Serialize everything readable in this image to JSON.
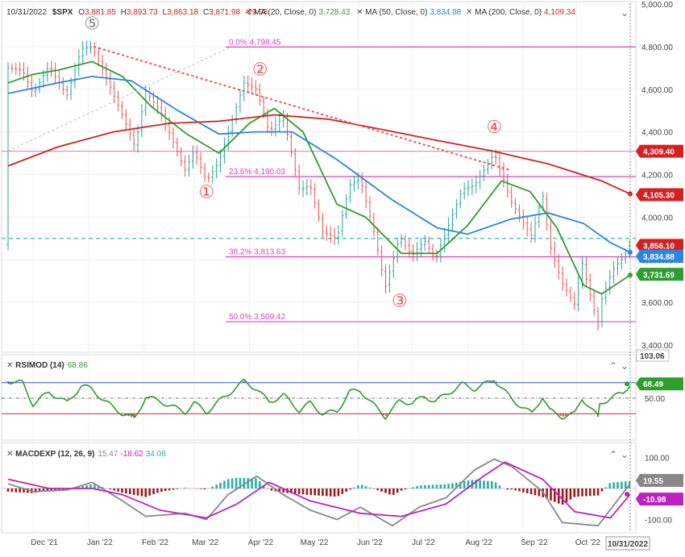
{
  "header": {
    "date": "10/31/2022",
    "symbol": "$SPX",
    "ohlc": [
      {
        "k": "O",
        "v": "3,881.85"
      },
      {
        "k": "H",
        "v": "3,893.73"
      },
      {
        "k": "L",
        "v": "3,863.18"
      },
      {
        "k": "C",
        "v": "3,871.98"
      }
    ],
    "change": "-29.08",
    "mas": [
      {
        "label": "MA (20, Close, 0)",
        "value": "3,728.43",
        "color": "#2e9e2e"
      },
      {
        "label": "MA (50, Close, 0)",
        "value": "3,834.88",
        "color": "#2a86e0"
      },
      {
        "label": "MA (200, Close, 0)",
        "value": "4,109.34",
        "color": "#d62020"
      }
    ]
  },
  "colors": {
    "up": "#26a69a",
    "down": "#ef5350",
    "fib": "#e040c0",
    "ma20": "#2e9e2e",
    "ma50": "#2a86e0",
    "ma200": "#d62020",
    "trend": "#ef5350",
    "rsi": "#2e9e2e",
    "macd": "#888888",
    "signal": "#c020c0",
    "hist_up": "#26b0a6",
    "hist_down": "#9e1a1a"
  },
  "x_axis": {
    "labels": [
      "Dec '21",
      "Jan '22",
      "Feb '22",
      "Mar '22",
      "Apr '22",
      "May '22",
      "Jun '22",
      "Jul '22",
      "Aug '22",
      "Sep '22",
      "Oct '22"
    ],
    "current": "10/31/2022"
  },
  "price_axis": [
    "5,000.00",
    "4,800.00",
    "4,600.00",
    "4,400.00",
    "4,200.00",
    "4,000.00",
    "3,800.00",
    "3,600.00",
    "3,400.00"
  ],
  "price_tags": [
    {
      "value": 4309.4,
      "text": "4,309.40",
      "color": "#d62020"
    },
    {
      "value": 4105.3,
      "text": "4,105.30",
      "color": "#d62020"
    },
    {
      "value": 3856.1,
      "text": "3,856.10",
      "color": "#d62020"
    },
    {
      "value": 3834.88,
      "text": "3,834.88",
      "color": "#2a86e0"
    },
    {
      "value": 3731.69,
      "text": "3,731.69",
      "color": "#2e9e2e"
    }
  ],
  "volume_tag": "103.06",
  "fib_levels": [
    {
      "label": "0.0% 4,798.45",
      "value": 4798.45
    },
    {
      "label": "23.6% 4,190.03",
      "value": 4190.03
    },
    {
      "label": "38.2% 3,813.63",
      "value": 3813.63
    },
    {
      "label": "50.0% 3,509.42",
      "value": 3509.42
    }
  ],
  "horizontal_lines": [
    {
      "value": 4309.4,
      "color": "#f080b0",
      "style": "solid"
    },
    {
      "value": 3900.0,
      "color": "#20b0b0",
      "style": "dashed"
    }
  ],
  "waves": [
    {
      "label": "⑤",
      "date": "2022-01-03",
      "price": 4880,
      "color": "#888888"
    },
    {
      "label": "①",
      "date": "2022-03-08",
      "price": 4090,
      "color": "#ef5350"
    },
    {
      "label": "②",
      "date": "2022-04-07",
      "price": 4665,
      "color": "#ef5350"
    },
    {
      "label": "③",
      "date": "2022-06-24",
      "price": 3580,
      "color": "#ef5350"
    },
    {
      "label": "④",
      "date": "2022-08-16",
      "price": 4395,
      "color": "#ef5350"
    }
  ],
  "rsi": {
    "title": "RSIMOD (14)",
    "value": "68.86",
    "tag": "68.49",
    "axis": [
      "50.00"
    ],
    "upper": 70,
    "lower": 30,
    "mid": 50
  },
  "macd": {
    "title": "MACDEXP (12, 26, 9)",
    "values": [
      {
        "v": "15.47",
        "color": "#888888"
      },
      {
        "v": "-18.62",
        "color": "#c020c0"
      },
      {
        "v": "34.08",
        "color": "#26b0a6"
      }
    ],
    "axis": [
      "100.00",
      "-100.00"
    ],
    "tags": [
      {
        "text": "19.55",
        "color": "#888888"
      },
      {
        "text": "-10.98",
        "color": "#c020c0"
      }
    ]
  },
  "chart_data": {
    "type": "line",
    "x_start": "2021-11-17",
    "x_end": "2022-10-31",
    "price_ylim": [
      3400,
      5000
    ],
    "price_series": [
      {
        "name": "MA (20, Close, 0)",
        "points": [
          [
            "2021-11-17",
            4630
          ],
          [
            "2021-12-01",
            4670
          ],
          [
            "2021-12-15",
            4690
          ],
          [
            "2022-01-03",
            4730
          ],
          [
            "2022-01-20",
            4660
          ],
          [
            "2022-02-05",
            4520
          ],
          [
            "2022-02-25",
            4390
          ],
          [
            "2022-03-15",
            4300
          ],
          [
            "2022-04-01",
            4440
          ],
          [
            "2022-04-15",
            4510
          ],
          [
            "2022-05-01",
            4400
          ],
          [
            "2022-05-20",
            4060
          ],
          [
            "2022-06-05",
            4000
          ],
          [
            "2022-06-25",
            3830
          ],
          [
            "2022-07-15",
            3830
          ],
          [
            "2022-08-01",
            3960
          ],
          [
            "2022-08-20",
            4170
          ],
          [
            "2022-09-05",
            4120
          ],
          [
            "2022-09-20",
            3950
          ],
          [
            "2022-10-05",
            3680
          ],
          [
            "2022-10-15",
            3640
          ],
          [
            "2022-10-31",
            3728
          ]
        ]
      },
      {
        "name": "MA (50, Close, 0)",
        "points": [
          [
            "2021-11-17",
            4580
          ],
          [
            "2021-12-15",
            4630
          ],
          [
            "2022-01-03",
            4660
          ],
          [
            "2022-01-25",
            4640
          ],
          [
            "2022-02-20",
            4500
          ],
          [
            "2022-03-15",
            4390
          ],
          [
            "2022-04-05",
            4400
          ],
          [
            "2022-04-25",
            4400
          ],
          [
            "2022-05-20",
            4270
          ],
          [
            "2022-06-20",
            4080
          ],
          [
            "2022-07-15",
            3950
          ],
          [
            "2022-08-01",
            3920
          ],
          [
            "2022-08-25",
            3990
          ],
          [
            "2022-09-15",
            4020
          ],
          [
            "2022-10-05",
            3970
          ],
          [
            "2022-10-20",
            3880
          ],
          [
            "2022-10-31",
            3835
          ]
        ]
      },
      {
        "name": "MA (200, Close, 0)",
        "points": [
          [
            "2021-11-17",
            4240
          ],
          [
            "2021-12-15",
            4330
          ],
          [
            "2022-01-15",
            4400
          ],
          [
            "2022-02-15",
            4440
          ],
          [
            "2022-03-15",
            4450
          ],
          [
            "2022-04-15",
            4480
          ],
          [
            "2022-05-15",
            4460
          ],
          [
            "2022-06-15",
            4410
          ],
          [
            "2022-07-15",
            4360
          ],
          [
            "2022-08-15",
            4310
          ],
          [
            "2022-09-15",
            4250
          ],
          [
            "2022-10-15",
            4170
          ],
          [
            "2022-10-31",
            4109
          ]
        ]
      }
    ],
    "price_path": [
      [
        "2021-11-17",
        4700
      ],
      [
        "2021-11-25",
        4690
      ],
      [
        "2021-12-01",
        4580
      ],
      [
        "2021-12-10",
        4710
      ],
      [
        "2021-12-20",
        4570
      ],
      [
        "2021-12-28",
        4790
      ],
      [
        "2022-01-03",
        4800
      ],
      [
        "2022-01-10",
        4670
      ],
      [
        "2022-01-20",
        4480
      ],
      [
        "2022-01-27",
        4330
      ],
      [
        "2022-02-02",
        4590
      ],
      [
        "2022-02-10",
        4500
      ],
      [
        "2022-02-24",
        4220
      ],
      [
        "2022-03-01",
        4310
      ],
      [
        "2022-03-08",
        4170
      ],
      [
        "2022-03-15",
        4260
      ],
      [
        "2022-03-29",
        4630
      ],
      [
        "2022-04-05",
        4600
      ],
      [
        "2022-04-12",
        4400
      ],
      [
        "2022-04-20",
        4470
      ],
      [
        "2022-04-29",
        4130
      ],
      [
        "2022-05-05",
        4150
      ],
      [
        "2022-05-12",
        3930
      ],
      [
        "2022-05-20",
        3900
      ],
      [
        "2022-05-27",
        4150
      ],
      [
        "2022-06-02",
        4180
      ],
      [
        "2022-06-10",
        3920
      ],
      [
        "2022-06-16",
        3670
      ],
      [
        "2022-06-24",
        3910
      ],
      [
        "2022-07-01",
        3820
      ],
      [
        "2022-07-08",
        3890
      ],
      [
        "2022-07-14",
        3800
      ],
      [
        "2022-07-29",
        4130
      ],
      [
        "2022-08-05",
        4150
      ],
      [
        "2022-08-16",
        4300
      ],
      [
        "2022-08-26",
        4060
      ],
      [
        "2022-09-06",
        3910
      ],
      [
        "2022-09-12",
        4110
      ],
      [
        "2022-09-16",
        3870
      ],
      [
        "2022-09-23",
        3690
      ],
      [
        "2022-09-30",
        3590
      ],
      [
        "2022-10-04",
        3790
      ],
      [
        "2022-10-13",
        3490
      ],
      [
        "2022-10-14",
        3590
      ],
      [
        "2022-10-21",
        3750
      ],
      [
        "2022-10-27",
        3810
      ],
      [
        "2022-10-31",
        3872
      ]
    ],
    "trendline": {
      "from": [
        "2022-01-04",
        4800
      ],
      "to": [
        "2022-08-25",
        4220
      ]
    },
    "dotted_line": {
      "from": [
        "2021-11-17",
        4310
      ],
      "to": [
        "2022-03-22",
        4800
      ]
    },
    "rsi_ylim": [
      0,
      100
    ],
    "rsi_path": [
      [
        "2021-11-17",
        72
      ],
      [
        "2021-11-25",
        70
      ],
      [
        "2021-12-01",
        42
      ],
      [
        "2021-12-10",
        58
      ],
      [
        "2021-12-20",
        44
      ],
      [
        "2021-12-28",
        66
      ],
      [
        "2022-01-03",
        62
      ],
      [
        "2022-01-10",
        46
      ],
      [
        "2022-01-20",
        30
      ],
      [
        "2022-01-27",
        24
      ],
      [
        "2022-02-02",
        52
      ],
      [
        "2022-02-10",
        46
      ],
      [
        "2022-02-24",
        32
      ],
      [
        "2022-03-01",
        44
      ],
      [
        "2022-03-08",
        32
      ],
      [
        "2022-03-15",
        46
      ],
      [
        "2022-03-29",
        72
      ],
      [
        "2022-04-05",
        62
      ],
      [
        "2022-04-12",
        45
      ],
      [
        "2022-04-20",
        54
      ],
      [
        "2022-04-29",
        34
      ],
      [
        "2022-05-05",
        44
      ],
      [
        "2022-05-12",
        30
      ],
      [
        "2022-05-20",
        33
      ],
      [
        "2022-05-27",
        58
      ],
      [
        "2022-06-02",
        60
      ],
      [
        "2022-06-10",
        40
      ],
      [
        "2022-06-16",
        26
      ],
      [
        "2022-06-24",
        46
      ],
      [
        "2022-07-01",
        44
      ],
      [
        "2022-07-08",
        52
      ],
      [
        "2022-07-14",
        46
      ],
      [
        "2022-07-29",
        68
      ],
      [
        "2022-08-05",
        62
      ],
      [
        "2022-08-16",
        74
      ],
      [
        "2022-08-26",
        48
      ],
      [
        "2022-09-06",
        30
      ],
      [
        "2022-09-12",
        52
      ],
      [
        "2022-09-16",
        34
      ],
      [
        "2022-09-23",
        26
      ],
      [
        "2022-09-30",
        30
      ],
      [
        "2022-10-04",
        50
      ],
      [
        "2022-10-13",
        26
      ],
      [
        "2022-10-14",
        42
      ],
      [
        "2022-10-21",
        52
      ],
      [
        "2022-10-27",
        56
      ],
      [
        "2022-10-31",
        68.86
      ]
    ],
    "macd_ylim": [
      -130,
      130
    ],
    "macd_path": [
      [
        "2021-11-17",
        15
      ],
      [
        "2021-12-01",
        -10
      ],
      [
        "2021-12-20",
        -5
      ],
      [
        "2022-01-03",
        20
      ],
      [
        "2022-01-20",
        -40
      ],
      [
        "2022-02-02",
        -90
      ],
      [
        "2022-02-24",
        -80
      ],
      [
        "2022-03-08",
        -100
      ],
      [
        "2022-03-20",
        -20
      ],
      [
        "2022-04-05",
        40
      ],
      [
        "2022-04-20",
        -20
      ],
      [
        "2022-05-05",
        -70
      ],
      [
        "2022-05-20",
        -100
      ],
      [
        "2022-06-02",
        -60
      ],
      [
        "2022-06-20",
        -120
      ],
      [
        "2022-07-05",
        -60
      ],
      [
        "2022-07-20",
        -30
      ],
      [
        "2022-08-05",
        60
      ],
      [
        "2022-08-16",
        95
      ],
      [
        "2022-08-26",
        70
      ],
      [
        "2022-09-12",
        -10
      ],
      [
        "2022-09-23",
        -110
      ],
      [
        "2022-10-13",
        -120
      ],
      [
        "2022-10-31",
        15.47
      ]
    ],
    "signal_path": [
      [
        "2021-11-17",
        30
      ],
      [
        "2021-12-10",
        0
      ],
      [
        "2022-01-03",
        0
      ],
      [
        "2022-01-20",
        -20
      ],
      [
        "2022-02-10",
        -70
      ],
      [
        "2022-03-08",
        -95
      ],
      [
        "2022-03-25",
        -50
      ],
      [
        "2022-04-12",
        20
      ],
      [
        "2022-05-05",
        -40
      ],
      [
        "2022-06-02",
        -80
      ],
      [
        "2022-06-25",
        -90
      ],
      [
        "2022-07-20",
        -50
      ],
      [
        "2022-08-10",
        40
      ],
      [
        "2022-08-22",
        85
      ],
      [
        "2022-09-12",
        30
      ],
      [
        "2022-09-30",
        -75
      ],
      [
        "2022-10-20",
        -95
      ],
      [
        "2022-10-31",
        -18.62
      ]
    ]
  }
}
